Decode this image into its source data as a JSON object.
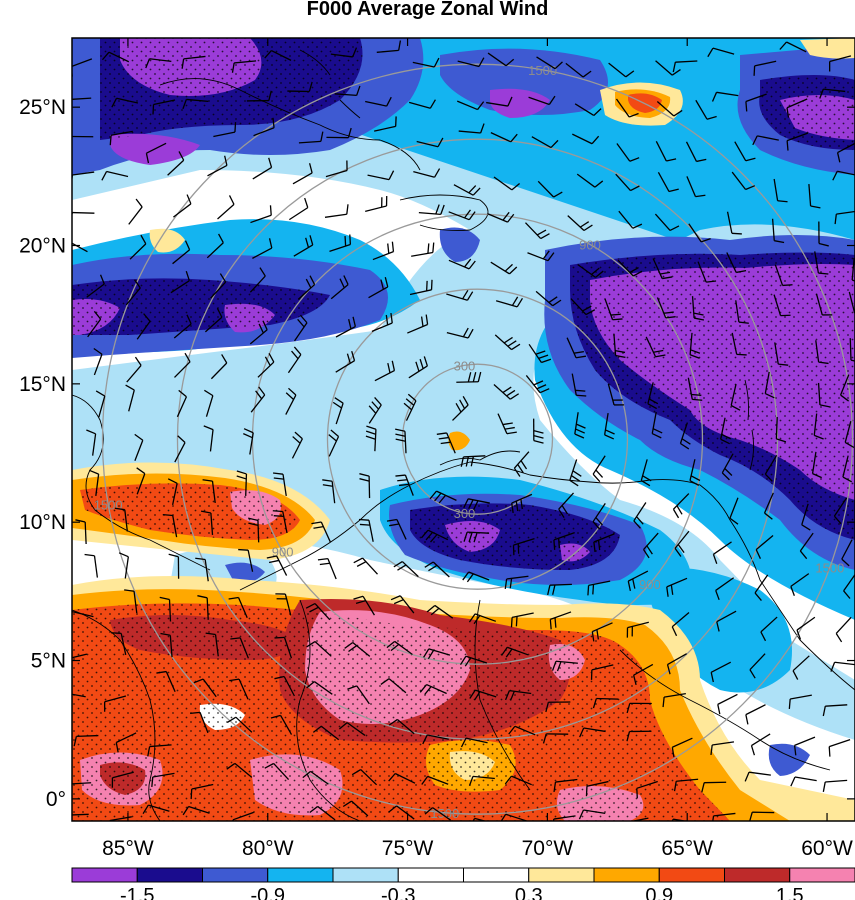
{
  "title": "F000 Average Zonal Wind",
  "map": {
    "lon_ticks": [
      {
        "lon": -85,
        "label": "85°W"
      },
      {
        "lon": -80,
        "label": "80°W"
      },
      {
        "lon": -75,
        "label": "75°W"
      },
      {
        "lon": -70,
        "label": "70°W"
      },
      {
        "lon": -65,
        "label": "65°W"
      },
      {
        "lon": -60,
        "label": "60°W"
      }
    ],
    "lat_ticks": [
      {
        "lat": 0,
        "label": "0°"
      },
      {
        "lat": 5,
        "label": "5°N"
      },
      {
        "lat": 10,
        "label": "10°N"
      },
      {
        "lat": 15,
        "label": "15°N"
      },
      {
        "lat": 20,
        "label": "20°N"
      },
      {
        "lat": 25,
        "label": "25°N"
      }
    ],
    "lon_range": [
      -87,
      -59
    ],
    "lat_range": [
      -0.8,
      27.5
    ],
    "storm_center": {
      "lon": -72.5,
      "lat": 13.0
    },
    "range_rings": [
      {
        "value": 300,
        "label": "300"
      },
      {
        "value": 900,
        "label": "900"
      },
      {
        "value": 1500,
        "label": "1500"
      }
    ],
    "colors": {
      "ring": "#9a9a9a",
      "coast": "#000000",
      "barb": "#000000"
    }
  },
  "colorbar": {
    "colors": [
      "#9b3cd8",
      "#1a0c8e",
      "#3e5ad2",
      "#14b4f0",
      "#aee1f7",
      "#ffffff",
      "#ffffff",
      "#ffe89a",
      "#ffa800",
      "#f24a14",
      "#be2a2a",
      "#f582b0"
    ],
    "labels": [
      "-1.5",
      "-0.9",
      "-0.3",
      "0.3",
      "0.9",
      "1.5"
    ]
  }
}
